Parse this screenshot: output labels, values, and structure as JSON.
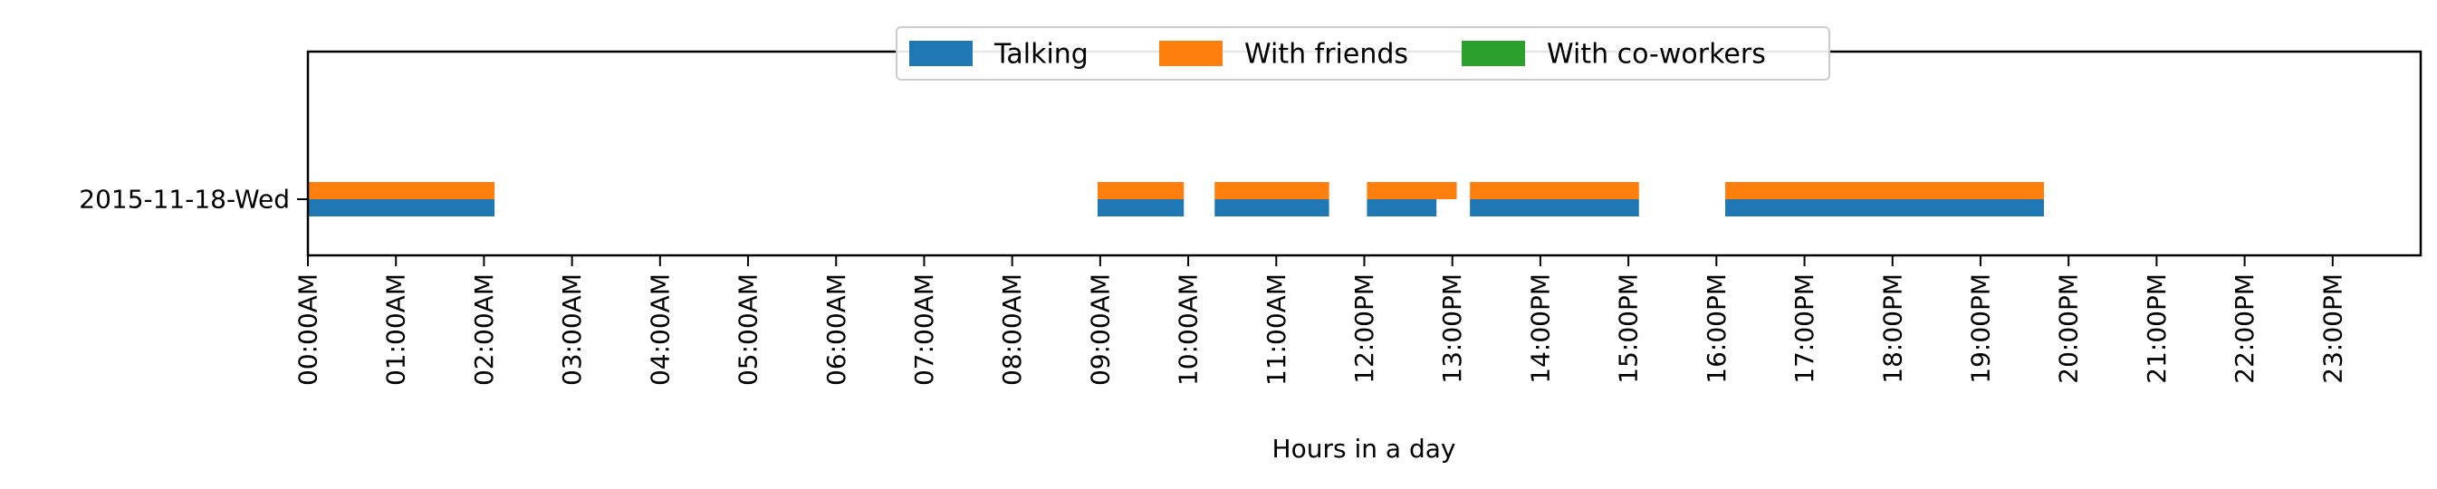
{
  "chart_data": {
    "type": "timeline",
    "title": "",
    "xlabel": "Hours in a day",
    "ylabel": "",
    "xlim": [
      0,
      24
    ],
    "x_ticks": [
      "00:00AM",
      "01:00AM",
      "02:00AM",
      "03:00AM",
      "04:00AM",
      "05:00AM",
      "06:00AM",
      "07:00AM",
      "08:00AM",
      "09:00AM",
      "10:00AM",
      "11:00AM",
      "12:00PM",
      "13:00PM",
      "14:00PM",
      "15:00PM",
      "16:00PM",
      "17:00PM",
      "18:00PM",
      "19:00PM",
      "20:00PM",
      "21:00PM",
      "22:00PM",
      "23:00PM"
    ],
    "categories": [
      "2015-11-18-Wed"
    ],
    "legend_position": "top-center",
    "grid": false,
    "series": [
      {
        "name": "Talking",
        "color": "#1f77b4",
        "intervals": [
          [
            0.0,
            2.12
          ],
          [
            8.97,
            9.95
          ],
          [
            10.3,
            11.6
          ],
          [
            12.03,
            12.82
          ],
          [
            13.2,
            15.12
          ],
          [
            16.1,
            19.72
          ]
        ]
      },
      {
        "name": "With friends",
        "color": "#ff7f0e",
        "intervals": [
          [
            0.0,
            2.12
          ],
          [
            8.97,
            9.95
          ],
          [
            10.3,
            11.6
          ],
          [
            12.03,
            13.05
          ],
          [
            13.2,
            15.12
          ],
          [
            16.1,
            19.72
          ]
        ]
      },
      {
        "name": "With co-workers",
        "color": "#2ca02c",
        "intervals": []
      }
    ]
  }
}
